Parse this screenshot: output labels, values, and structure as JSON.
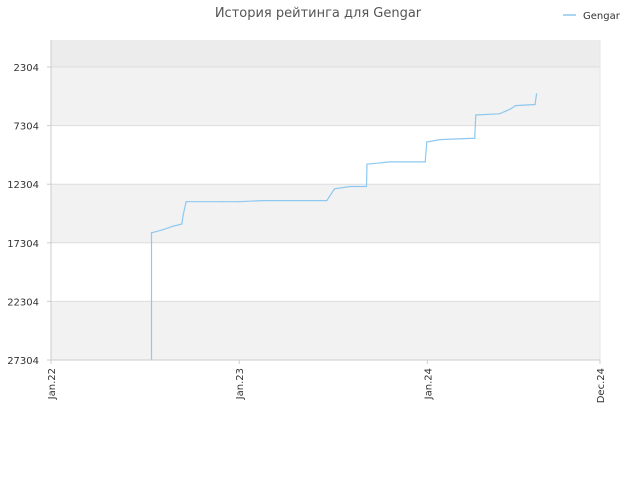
{
  "chart_data": {
    "type": "line",
    "title": "История рейтинга для Gengar",
    "xlabel": "",
    "ylabel": "",
    "x_ticks": [
      "Jan.22",
      "Jan.23",
      "Jan.24",
      "Dec.24"
    ],
    "x_tick_dates": [
      "2022-01-01",
      "2023-01-01",
      "2024-01-01",
      "2024-12-01"
    ],
    "y_ticks": [
      2304,
      7304,
      12304,
      17304,
      22304,
      27304
    ],
    "ylim": [
      27304,
      0
    ],
    "y_inverted": true,
    "grid": true,
    "banded_background": true,
    "legend": "top-right",
    "colors": {
      "series": "#8ec8f0",
      "band": "#f2f2f2",
      "top_band": "#ececec",
      "grid": "#dddddd"
    },
    "series": [
      {
        "name": "Gengar",
        "points": [
          [
            "2022-07-15",
            27304
          ],
          [
            "2022-07-15",
            16450
          ],
          [
            "2022-08-05",
            16200
          ],
          [
            "2022-08-25",
            15900
          ],
          [
            "2022-09-12",
            15700
          ],
          [
            "2022-09-14",
            15000
          ],
          [
            "2022-09-20",
            13800
          ],
          [
            "2022-12-01",
            13800
          ],
          [
            "2023-01-01",
            13800
          ],
          [
            "2023-02-15",
            13700
          ],
          [
            "2023-06-20",
            13700
          ],
          [
            "2023-07-05",
            12700
          ],
          [
            "2023-08-05",
            12500
          ],
          [
            "2023-09-05",
            12500
          ],
          [
            "2023-09-06",
            10600
          ],
          [
            "2023-10-20",
            10400
          ],
          [
            "2023-12-28",
            10400
          ],
          [
            "2023-12-31",
            8700
          ],
          [
            "2024-01-25",
            8500
          ],
          [
            "2024-03-25",
            8400
          ],
          [
            "2024-04-02",
            8400
          ],
          [
            "2024-04-04",
            6400
          ],
          [
            "2024-05-20",
            6300
          ],
          [
            "2024-06-10",
            5900
          ],
          [
            "2024-06-20",
            5600
          ],
          [
            "2024-07-28",
            5500
          ],
          [
            "2024-07-31",
            4600
          ]
        ]
      }
    ]
  }
}
